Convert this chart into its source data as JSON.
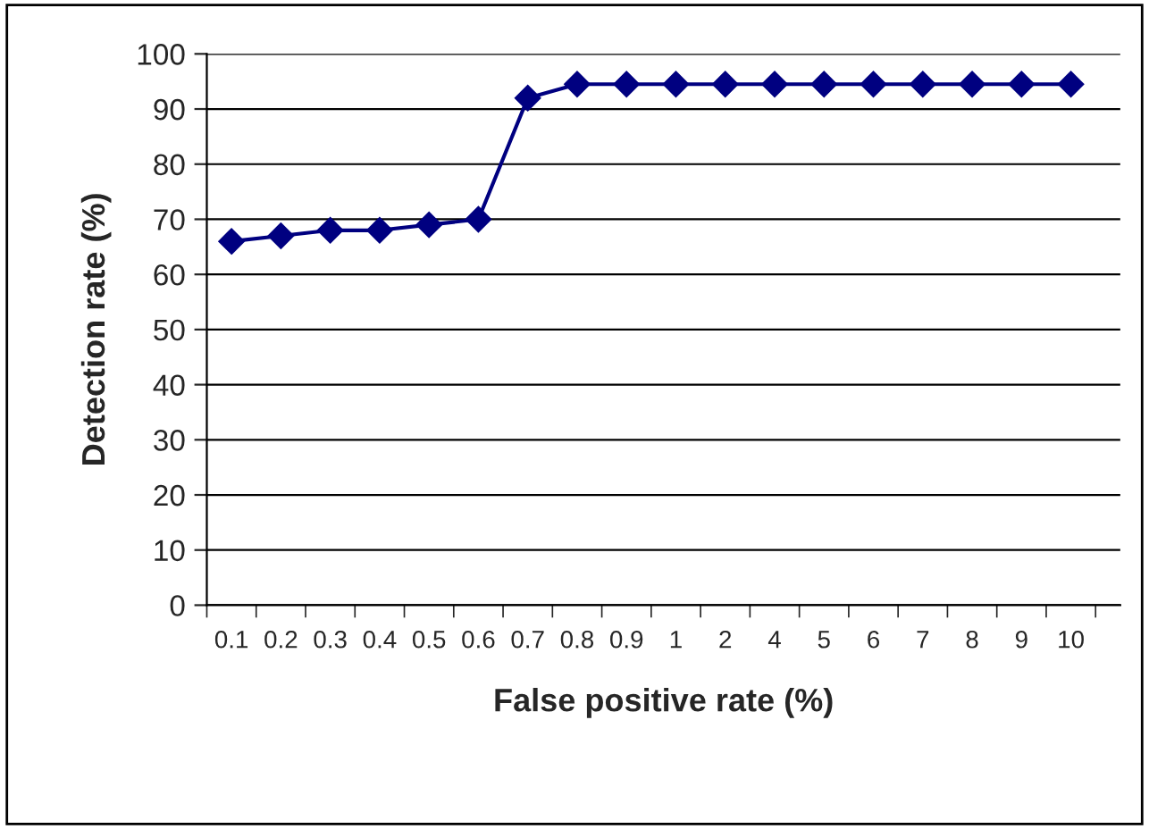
{
  "chart_data": {
    "type": "line",
    "xlabel": "False positive rate (%)",
    "ylabel": "Detection rate (%)",
    "categories": [
      "0.1",
      "0.2",
      "0.3",
      "0.4",
      "0.5",
      "0.6",
      "0.7",
      "0.8",
      "0.9",
      "1",
      "2",
      "4",
      "5",
      "6",
      "7",
      "8",
      "9",
      "10"
    ],
    "series": [
      {
        "color": "#000080",
        "values": [
          66,
          67,
          68,
          68,
          69,
          70,
          92,
          94.5,
          94.5,
          94.5,
          94.5,
          94.5,
          94.5,
          94.5,
          94.5,
          94.5,
          94.5,
          94.5
        ]
      }
    ],
    "ylim": [
      0,
      100
    ],
    "yticks": [
      0,
      10,
      20,
      30,
      40,
      50,
      60,
      70,
      80,
      90,
      100
    ],
    "grid": "y",
    "marker": "diamond",
    "line_style": "solid",
    "legend": false
  }
}
